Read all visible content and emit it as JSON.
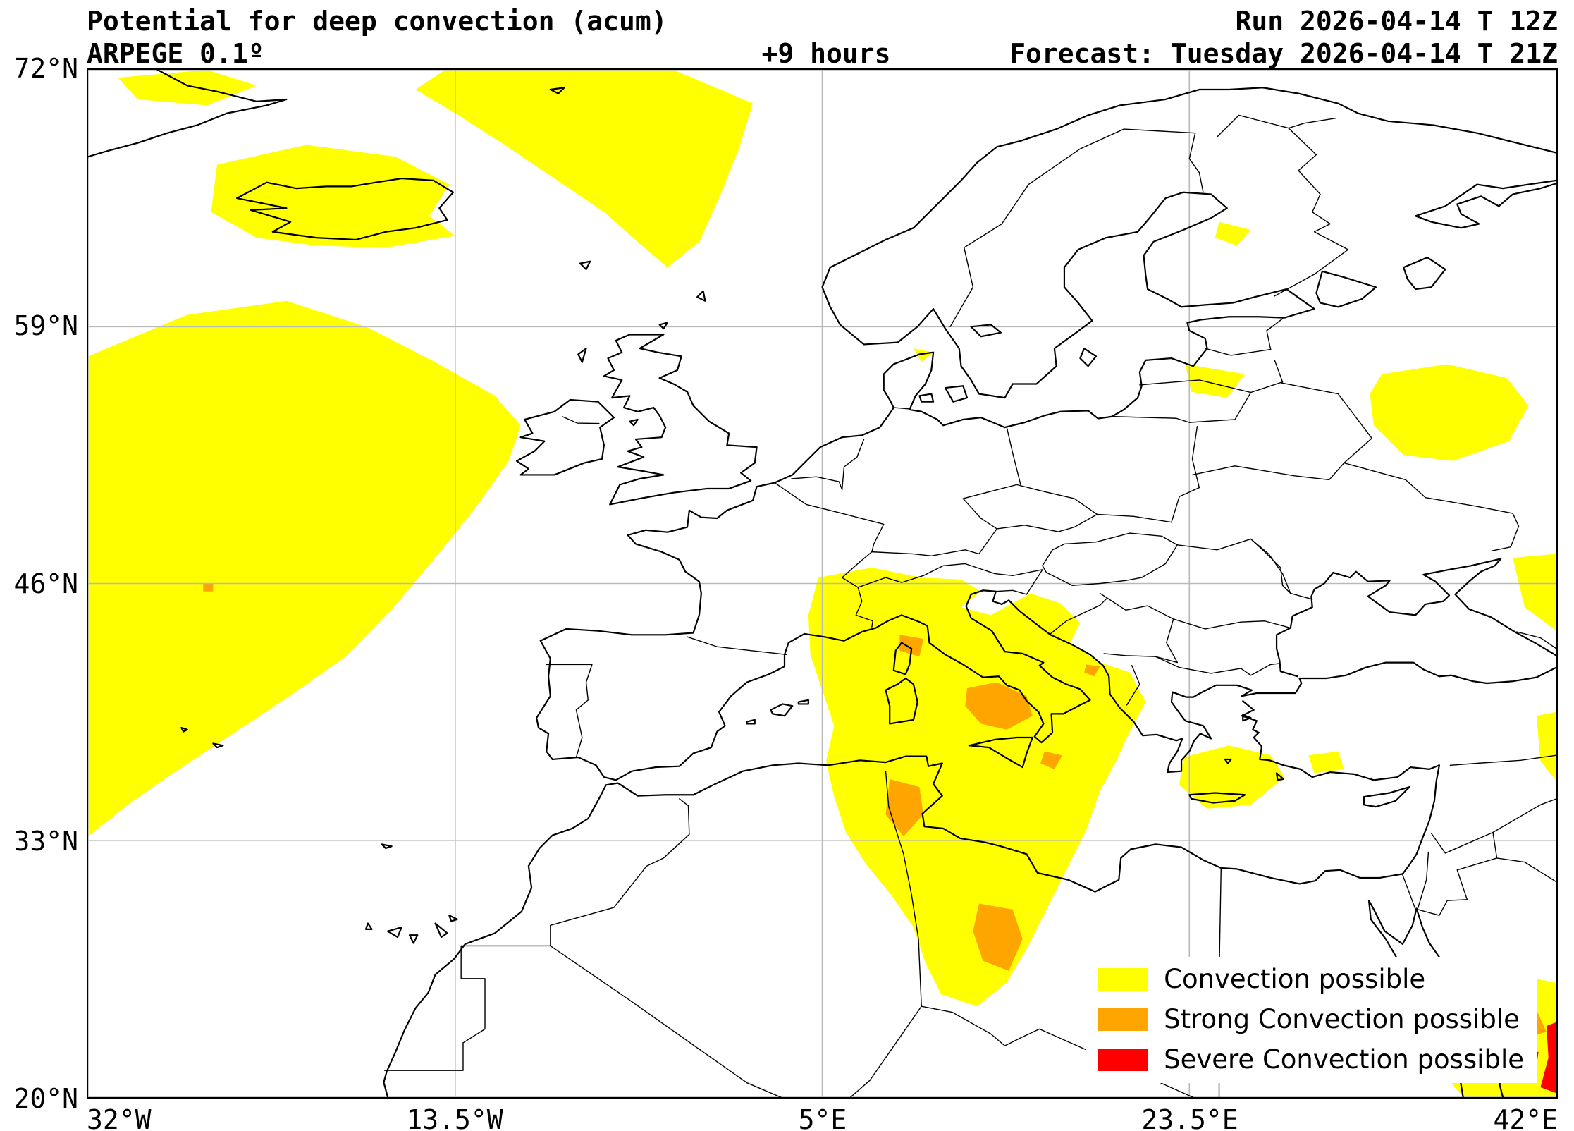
{
  "header": {
    "title": "Potential for deep convection (acum)",
    "model": "ARPEGE 0.1º",
    "lead_time": "+9 hours",
    "run": "Run 2026-04-14 T 12Z",
    "forecast": "Forecast: Tuesday 2026-04-14 T 21Z"
  },
  "axes": {
    "lat_ticks": [
      "72°N",
      "59°N",
      "46°N",
      "33°N",
      "20°N"
    ],
    "lon_ticks": [
      "32°W",
      "13.5°W",
      "5°E",
      "23.5°E",
      "42°E"
    ],
    "lat_values": [
      72,
      59,
      46,
      33,
      20
    ],
    "lon_values": [
      -32,
      -13.5,
      5,
      23.5,
      42
    ],
    "grid_color": "#b9b9b9"
  },
  "legend": {
    "items": [
      {
        "label": "Convection possible",
        "level": "convection",
        "color": "#FFFF00"
      },
      {
        "label": "Strong Convection possible",
        "level": "strong",
        "color": "#FFA500"
      },
      {
        "label": "Severe Convection possible",
        "level": "severe",
        "color": "#FF0000"
      }
    ]
  },
  "chart_data": {
    "type": "map",
    "projection": "equirectangular",
    "extent": {
      "lon": [
        -32,
        42
      ],
      "lat": [
        20,
        72
      ]
    },
    "title": "Potential for deep convection (acum)",
    "regions": [
      {
        "name": "north-atlantic",
        "level": "convection",
        "points": [
          [
            -32,
            57.5
          ],
          [
            -27,
            59.6
          ],
          [
            -22,
            60.3
          ],
          [
            -18,
            59.0
          ],
          [
            -14.5,
            57.2
          ],
          [
            -11.5,
            55.5
          ],
          [
            -10.2,
            54.0
          ],
          [
            -10.8,
            52.2
          ],
          [
            -12.5,
            49.8
          ],
          [
            -14.5,
            47.3
          ],
          [
            -16.6,
            44.8
          ],
          [
            -19,
            42.3
          ],
          [
            -22,
            40.2
          ],
          [
            -25,
            38.2
          ],
          [
            -28,
            36.2
          ],
          [
            -30,
            34.8
          ],
          [
            -32,
            33.2
          ]
        ]
      },
      {
        "name": "iceland",
        "level": "convection",
        "points": [
          [
            -25.5,
            67.2
          ],
          [
            -21,
            68.2
          ],
          [
            -16.5,
            67.6
          ],
          [
            -13.8,
            66.2
          ],
          [
            -14.8,
            64.6
          ],
          [
            -13.5,
            63.6
          ],
          [
            -17,
            63.0
          ],
          [
            -20.5,
            63.1
          ],
          [
            -23.5,
            63.5
          ],
          [
            -25.8,
            64.8
          ]
        ]
      },
      {
        "name": "norwegian-sea",
        "level": "convection",
        "points": [
          [
            -14,
            72
          ],
          [
            -2.5,
            72
          ],
          [
            1.5,
            70.3
          ],
          [
            0.8,
            68.0
          ],
          [
            -0.2,
            65.5
          ],
          [
            -1.2,
            63.3
          ],
          [
            -2.8,
            62.0
          ],
          [
            -4.2,
            63.2
          ],
          [
            -6.0,
            64.8
          ],
          [
            -8.5,
            66.5
          ],
          [
            -11,
            68.2
          ],
          [
            -13.5,
            69.8
          ],
          [
            -15.5,
            71.0
          ]
        ]
      },
      {
        "name": "greenland-sea-streak",
        "level": "convection",
        "points": [
          [
            -30.5,
            71.6
          ],
          [
            -26,
            72
          ],
          [
            -23.5,
            71.2
          ],
          [
            -26,
            70.2
          ],
          [
            -29.5,
            70.5
          ]
        ]
      },
      {
        "name": "western-russia",
        "level": "convection",
        "points": [
          [
            33.2,
            56.6
          ],
          [
            36.5,
            57.1
          ],
          [
            39.5,
            56.4
          ],
          [
            40.6,
            55.0
          ],
          [
            39.6,
            53.2
          ],
          [
            36.8,
            52.2
          ],
          [
            34.3,
            52.5
          ],
          [
            32.8,
            54.0
          ],
          [
            32.6,
            55.6
          ]
        ]
      },
      {
        "name": "finland-patch",
        "level": "convection",
        "points": [
          [
            25.0,
            64.3
          ],
          [
            26.6,
            63.9
          ],
          [
            25.9,
            63.1
          ],
          [
            24.8,
            63.5
          ]
        ]
      },
      {
        "name": "baltic-patch",
        "level": "convection",
        "points": [
          [
            23.3,
            57.1
          ],
          [
            26.3,
            56.6
          ],
          [
            25.4,
            55.4
          ],
          [
            23.6,
            55.7
          ]
        ]
      },
      {
        "name": "central-mediterranean",
        "level": "convection",
        "points": [
          [
            4.8,
            46.3
          ],
          [
            7.5,
            46.8
          ],
          [
            10.0,
            46.3
          ],
          [
            12.0,
            46.2
          ],
          [
            13.0,
            45.6
          ],
          [
            12.0,
            44.8
          ],
          [
            13.5,
            44.4
          ],
          [
            15.5,
            45.5
          ],
          [
            17.0,
            45.0
          ],
          [
            18.0,
            44.0
          ],
          [
            17.5,
            43.0
          ],
          [
            19.0,
            42.0
          ],
          [
            20.5,
            41.5
          ],
          [
            21.3,
            40.0
          ],
          [
            20.5,
            38.5
          ],
          [
            19.8,
            37.0
          ],
          [
            19.0,
            35.5
          ],
          [
            18.3,
            33.5
          ],
          [
            17.3,
            31.5
          ],
          [
            16.3,
            29.5
          ],
          [
            15.3,
            27.5
          ],
          [
            14.3,
            25.8
          ],
          [
            12.8,
            24.6
          ],
          [
            11.0,
            25.2
          ],
          [
            10.2,
            26.8
          ],
          [
            9.6,
            28.6
          ],
          [
            8.5,
            30.2
          ],
          [
            7.2,
            31.8
          ],
          [
            6.2,
            33.4
          ],
          [
            5.6,
            35.2
          ],
          [
            5.2,
            37.0
          ],
          [
            5.6,
            38.8
          ],
          [
            5.0,
            40.6
          ],
          [
            4.4,
            42.4
          ],
          [
            4.3,
            44.4
          ]
        ]
      },
      {
        "name": "aegean",
        "level": "convection",
        "points": [
          [
            23.2,
            37.2
          ],
          [
            25.5,
            37.8
          ],
          [
            27.6,
            37.3
          ],
          [
            28.3,
            36.2
          ],
          [
            26.6,
            34.8
          ],
          [
            24.4,
            34.6
          ],
          [
            23.0,
            35.8
          ]
        ]
      },
      {
        "name": "sw-turkey",
        "level": "convection",
        "points": [
          [
            29.5,
            37.3
          ],
          [
            31.0,
            37.5
          ],
          [
            31.3,
            36.6
          ],
          [
            29.8,
            36.4
          ]
        ]
      },
      {
        "name": "caucasus-edge",
        "level": "convection",
        "points": [
          [
            39.8,
            47.3
          ],
          [
            42,
            47.5
          ],
          [
            42,
            43.6
          ],
          [
            40.4,
            44.8
          ]
        ]
      },
      {
        "name": "east-anatolia-edge",
        "level": "convection",
        "points": [
          [
            41.0,
            39.3
          ],
          [
            42,
            39.5
          ],
          [
            42,
            36.0
          ],
          [
            41.2,
            37.0
          ]
        ]
      },
      {
        "name": "red-sea-corner",
        "level": "convection",
        "points": [
          [
            36.3,
            25.8
          ],
          [
            39.2,
            26.3
          ],
          [
            42,
            25.8
          ],
          [
            42,
            20
          ],
          [
            37.3,
            20
          ],
          [
            35.8,
            21.8
          ],
          [
            35.6,
            24.0
          ]
        ]
      },
      {
        "name": "denmark-patch",
        "level": "convection",
        "points": [
          [
            9.6,
            57.9
          ],
          [
            10.6,
            57.7
          ],
          [
            10.0,
            57.2
          ]
        ]
      },
      {
        "name": "corsica-strong",
        "level": "strong",
        "points": [
          [
            8.9,
            43.4
          ],
          [
            10.1,
            43.2
          ],
          [
            9.9,
            42.3
          ],
          [
            8.9,
            42.6
          ]
        ]
      },
      {
        "name": "tyrrhenian-strong",
        "level": "strong",
        "points": [
          [
            12.3,
            40.7
          ],
          [
            13.8,
            41.0
          ],
          [
            15.3,
            40.3
          ],
          [
            15.6,
            39.3
          ],
          [
            14.3,
            38.6
          ],
          [
            13.0,
            38.9
          ],
          [
            12.2,
            39.8
          ]
        ]
      },
      {
        "name": "ionian-speck",
        "level": "strong",
        "points": [
          [
            16.2,
            37.5
          ],
          [
            17.1,
            37.3
          ],
          [
            16.7,
            36.6
          ],
          [
            16.0,
            36.9
          ]
        ]
      },
      {
        "name": "tunisia-strong",
        "level": "strong",
        "points": [
          [
            8.4,
            36.1
          ],
          [
            9.9,
            35.7
          ],
          [
            10.1,
            34.3
          ],
          [
            9.1,
            33.2
          ],
          [
            8.2,
            34.3
          ]
        ]
      },
      {
        "name": "libya-strong",
        "level": "strong",
        "points": [
          [
            12.9,
            29.8
          ],
          [
            14.6,
            29.5
          ],
          [
            15.1,
            28.0
          ],
          [
            14.4,
            26.4
          ],
          [
            13.1,
            26.9
          ],
          [
            12.6,
            28.4
          ]
        ]
      },
      {
        "name": "adriatic-speck",
        "level": "strong",
        "points": [
          [
            18.3,
            41.9
          ],
          [
            19.0,
            41.8
          ],
          [
            18.7,
            41.3
          ],
          [
            18.2,
            41.5
          ]
        ]
      },
      {
        "name": "atlantic-speck",
        "level": "strong",
        "points": [
          [
            -26.2,
            46.0
          ],
          [
            -25.7,
            46.0
          ],
          [
            -25.7,
            45.6
          ],
          [
            -26.2,
            45.6
          ]
        ]
      },
      {
        "name": "arabia-speck-1",
        "level": "strong",
        "points": [
          [
            39.8,
            24.2
          ],
          [
            41.0,
            24.4
          ],
          [
            41.5,
            23.3
          ],
          [
            40.4,
            23.0
          ]
        ]
      },
      {
        "name": "arabia-speck-2",
        "level": "strong",
        "points": [
          [
            38.6,
            22.4
          ],
          [
            39.6,
            22.6
          ],
          [
            39.9,
            21.5
          ],
          [
            38.9,
            21.3
          ]
        ]
      },
      {
        "name": "severe-edge-strip",
        "level": "severe",
        "points": [
          [
            41.5,
            23.6
          ],
          [
            42,
            23.8
          ],
          [
            42,
            20.2
          ],
          [
            41.2,
            20.5
          ],
          [
            41.6,
            22.0
          ]
        ]
      },
      {
        "name": "severe-edge-speck",
        "level": "severe",
        "points": [
          [
            40.6,
            22.2
          ],
          [
            41.1,
            22.3
          ],
          [
            41.0,
            21.6
          ],
          [
            40.5,
            21.7
          ]
        ]
      }
    ]
  }
}
